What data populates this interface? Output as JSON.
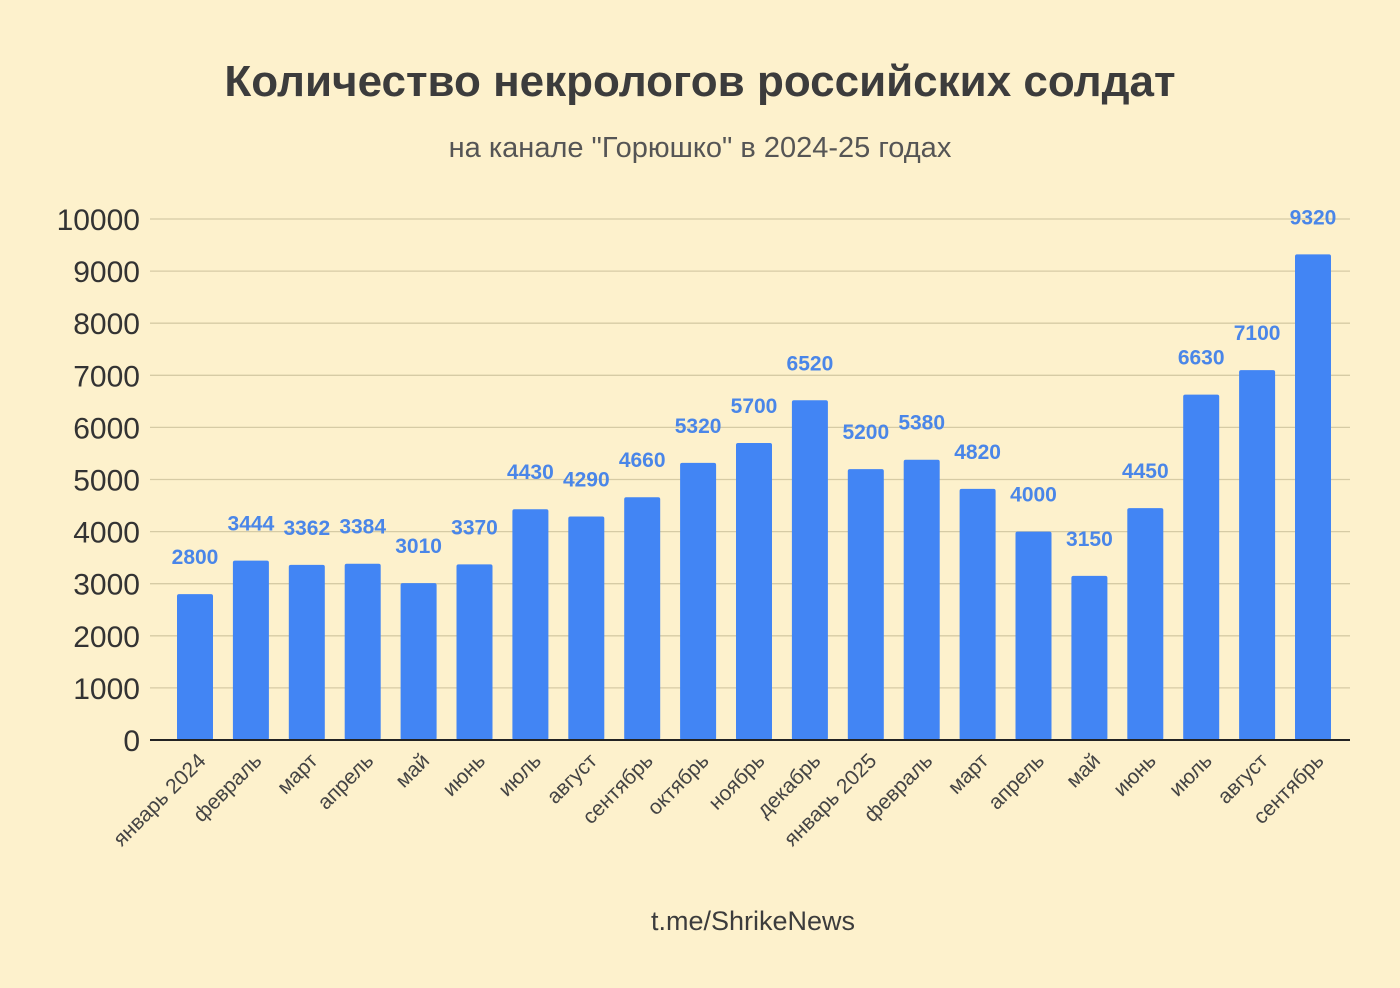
{
  "chart_data": {
    "type": "bar",
    "title": "Количество некрологов российских солдат",
    "subtitle": "на канале \"Горюшко\" в 2024-25 годах",
    "xlabel": "",
    "ylabel": "",
    "ylim": [
      0,
      10000
    ],
    "yticks": [
      0,
      1000,
      2000,
      3000,
      4000,
      5000,
      6000,
      7000,
      8000,
      9000,
      10000
    ],
    "grid": true,
    "legend": "none",
    "categories": [
      "январь 2024",
      "февраль",
      "март",
      "апрель",
      "май",
      "июнь",
      "июль",
      "август",
      "сентябрь",
      "октябрь",
      "ноябрь",
      "декабрь",
      "январь 2025",
      "февраль",
      "март",
      "апрель",
      "май",
      "июнь",
      "июль",
      "август",
      "сентябрь"
    ],
    "values": [
      2800,
      3444,
      3362,
      3384,
      3010,
      3370,
      4430,
      4290,
      4660,
      5320,
      5700,
      6520,
      5200,
      5380,
      4820,
      4000,
      3150,
      4450,
      6630,
      7100,
      9320
    ],
    "source": "t.me/ShrikeNews",
    "colors": {
      "bar": "#4285f4",
      "label": "#4a86e8",
      "background": "#fdf1cc",
      "grid": "#d6cba5",
      "text": "#3c3c3c"
    }
  }
}
